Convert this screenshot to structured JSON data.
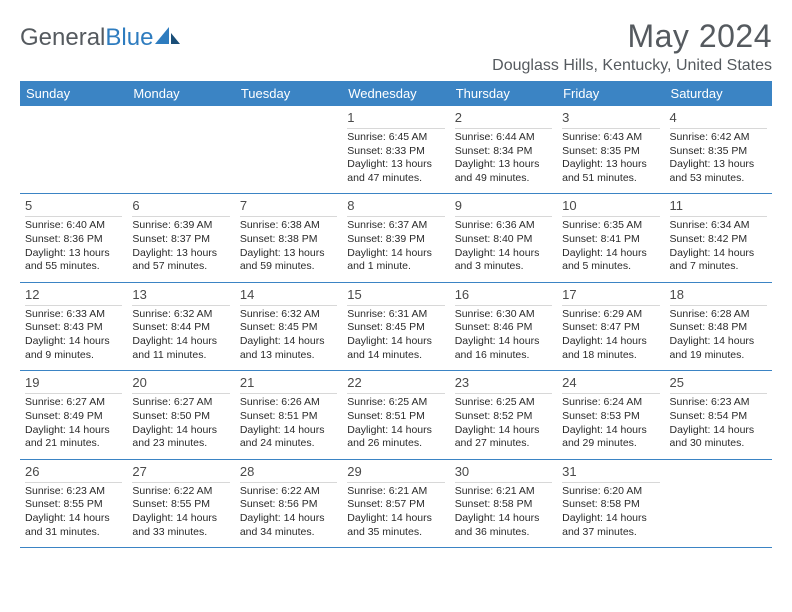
{
  "brand": {
    "part1": "General",
    "part2": "Blue"
  },
  "title": "May 2024",
  "location": "Douglass Hills, Kentucky, United States",
  "colors": {
    "header_bar": "#3b84c4",
    "header_text": "#ffffff",
    "body_text": "#2a2a2a",
    "title_text": "#555a5f",
    "rule": "#3b84c4"
  },
  "weekday_labels": [
    "Sunday",
    "Monday",
    "Tuesday",
    "Wednesday",
    "Thursday",
    "Friday",
    "Saturday"
  ],
  "weeks": [
    [
      null,
      null,
      null,
      {
        "n": "1",
        "sr": "6:45 AM",
        "ss": "8:33 PM",
        "dl": "13 hours and 47 minutes."
      },
      {
        "n": "2",
        "sr": "6:44 AM",
        "ss": "8:34 PM",
        "dl": "13 hours and 49 minutes."
      },
      {
        "n": "3",
        "sr": "6:43 AM",
        "ss": "8:35 PM",
        "dl": "13 hours and 51 minutes."
      },
      {
        "n": "4",
        "sr": "6:42 AM",
        "ss": "8:35 PM",
        "dl": "13 hours and 53 minutes."
      }
    ],
    [
      {
        "n": "5",
        "sr": "6:40 AM",
        "ss": "8:36 PM",
        "dl": "13 hours and 55 minutes."
      },
      {
        "n": "6",
        "sr": "6:39 AM",
        "ss": "8:37 PM",
        "dl": "13 hours and 57 minutes."
      },
      {
        "n": "7",
        "sr": "6:38 AM",
        "ss": "8:38 PM",
        "dl": "13 hours and 59 minutes."
      },
      {
        "n": "8",
        "sr": "6:37 AM",
        "ss": "8:39 PM",
        "dl": "14 hours and 1 minute."
      },
      {
        "n": "9",
        "sr": "6:36 AM",
        "ss": "8:40 PM",
        "dl": "14 hours and 3 minutes."
      },
      {
        "n": "10",
        "sr": "6:35 AM",
        "ss": "8:41 PM",
        "dl": "14 hours and 5 minutes."
      },
      {
        "n": "11",
        "sr": "6:34 AM",
        "ss": "8:42 PM",
        "dl": "14 hours and 7 minutes."
      }
    ],
    [
      {
        "n": "12",
        "sr": "6:33 AM",
        "ss": "8:43 PM",
        "dl": "14 hours and 9 minutes."
      },
      {
        "n": "13",
        "sr": "6:32 AM",
        "ss": "8:44 PM",
        "dl": "14 hours and 11 minutes."
      },
      {
        "n": "14",
        "sr": "6:32 AM",
        "ss": "8:45 PM",
        "dl": "14 hours and 13 minutes."
      },
      {
        "n": "15",
        "sr": "6:31 AM",
        "ss": "8:45 PM",
        "dl": "14 hours and 14 minutes."
      },
      {
        "n": "16",
        "sr": "6:30 AM",
        "ss": "8:46 PM",
        "dl": "14 hours and 16 minutes."
      },
      {
        "n": "17",
        "sr": "6:29 AM",
        "ss": "8:47 PM",
        "dl": "14 hours and 18 minutes."
      },
      {
        "n": "18",
        "sr": "6:28 AM",
        "ss": "8:48 PM",
        "dl": "14 hours and 19 minutes."
      }
    ],
    [
      {
        "n": "19",
        "sr": "6:27 AM",
        "ss": "8:49 PM",
        "dl": "14 hours and 21 minutes."
      },
      {
        "n": "20",
        "sr": "6:27 AM",
        "ss": "8:50 PM",
        "dl": "14 hours and 23 minutes."
      },
      {
        "n": "21",
        "sr": "6:26 AM",
        "ss": "8:51 PM",
        "dl": "14 hours and 24 minutes."
      },
      {
        "n": "22",
        "sr": "6:25 AM",
        "ss": "8:51 PM",
        "dl": "14 hours and 26 minutes."
      },
      {
        "n": "23",
        "sr": "6:25 AM",
        "ss": "8:52 PM",
        "dl": "14 hours and 27 minutes."
      },
      {
        "n": "24",
        "sr": "6:24 AM",
        "ss": "8:53 PM",
        "dl": "14 hours and 29 minutes."
      },
      {
        "n": "25",
        "sr": "6:23 AM",
        "ss": "8:54 PM",
        "dl": "14 hours and 30 minutes."
      }
    ],
    [
      {
        "n": "26",
        "sr": "6:23 AM",
        "ss": "8:55 PM",
        "dl": "14 hours and 31 minutes."
      },
      {
        "n": "27",
        "sr": "6:22 AM",
        "ss": "8:55 PM",
        "dl": "14 hours and 33 minutes."
      },
      {
        "n": "28",
        "sr": "6:22 AM",
        "ss": "8:56 PM",
        "dl": "14 hours and 34 minutes."
      },
      {
        "n": "29",
        "sr": "6:21 AM",
        "ss": "8:57 PM",
        "dl": "14 hours and 35 minutes."
      },
      {
        "n": "30",
        "sr": "6:21 AM",
        "ss": "8:58 PM",
        "dl": "14 hours and 36 minutes."
      },
      {
        "n": "31",
        "sr": "6:20 AM",
        "ss": "8:58 PM",
        "dl": "14 hours and 37 minutes."
      },
      null
    ]
  ],
  "labels": {
    "sunrise": "Sunrise:",
    "sunset": "Sunset:",
    "daylight": "Daylight:"
  }
}
